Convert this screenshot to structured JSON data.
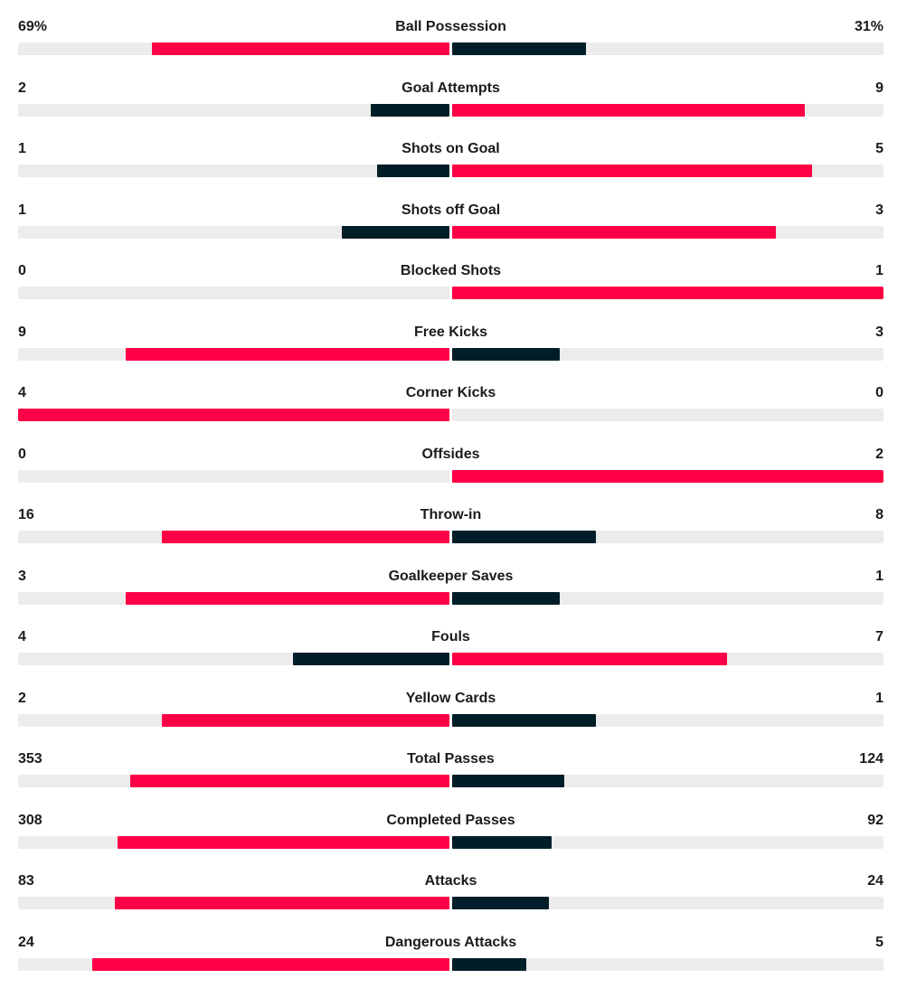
{
  "colors": {
    "leader": "#ff0046",
    "trailer": "#001e28",
    "track": "#ececec"
  },
  "stats": [
    {
      "label": "Ball Possession",
      "home": "69%",
      "away": "31%",
      "home_value": 69,
      "away_value": 31
    },
    {
      "label": "Goal Attempts",
      "home": "2",
      "away": "9",
      "home_value": 2,
      "away_value": 9
    },
    {
      "label": "Shots on Goal",
      "home": "1",
      "away": "5",
      "home_value": 1,
      "away_value": 5
    },
    {
      "label": "Shots off Goal",
      "home": "1",
      "away": "3",
      "home_value": 1,
      "away_value": 3
    },
    {
      "label": "Blocked Shots",
      "home": "0",
      "away": "1",
      "home_value": 0,
      "away_value": 1
    },
    {
      "label": "Free Kicks",
      "home": "9",
      "away": "3",
      "home_value": 9,
      "away_value": 3
    },
    {
      "label": "Corner Kicks",
      "home": "4",
      "away": "0",
      "home_value": 4,
      "away_value": 0
    },
    {
      "label": "Offsides",
      "home": "0",
      "away": "2",
      "home_value": 0,
      "away_value": 2
    },
    {
      "label": "Throw-in",
      "home": "16",
      "away": "8",
      "home_value": 16,
      "away_value": 8
    },
    {
      "label": "Goalkeeper Saves",
      "home": "3",
      "away": "1",
      "home_value": 3,
      "away_value": 1
    },
    {
      "label": "Fouls",
      "home": "4",
      "away": "7",
      "home_value": 4,
      "away_value": 7
    },
    {
      "label": "Yellow Cards",
      "home": "2",
      "away": "1",
      "home_value": 2,
      "away_value": 1
    },
    {
      "label": "Total Passes",
      "home": "353",
      "away": "124",
      "home_value": 353,
      "away_value": 124
    },
    {
      "label": "Completed Passes",
      "home": "308",
      "away": "92",
      "home_value": 308,
      "away_value": 92
    },
    {
      "label": "Attacks",
      "home": "83",
      "away": "24",
      "home_value": 83,
      "away_value": 24
    },
    {
      "label": "Dangerous Attacks",
      "home": "24",
      "away": "5",
      "home_value": 24,
      "away_value": 5
    }
  ]
}
